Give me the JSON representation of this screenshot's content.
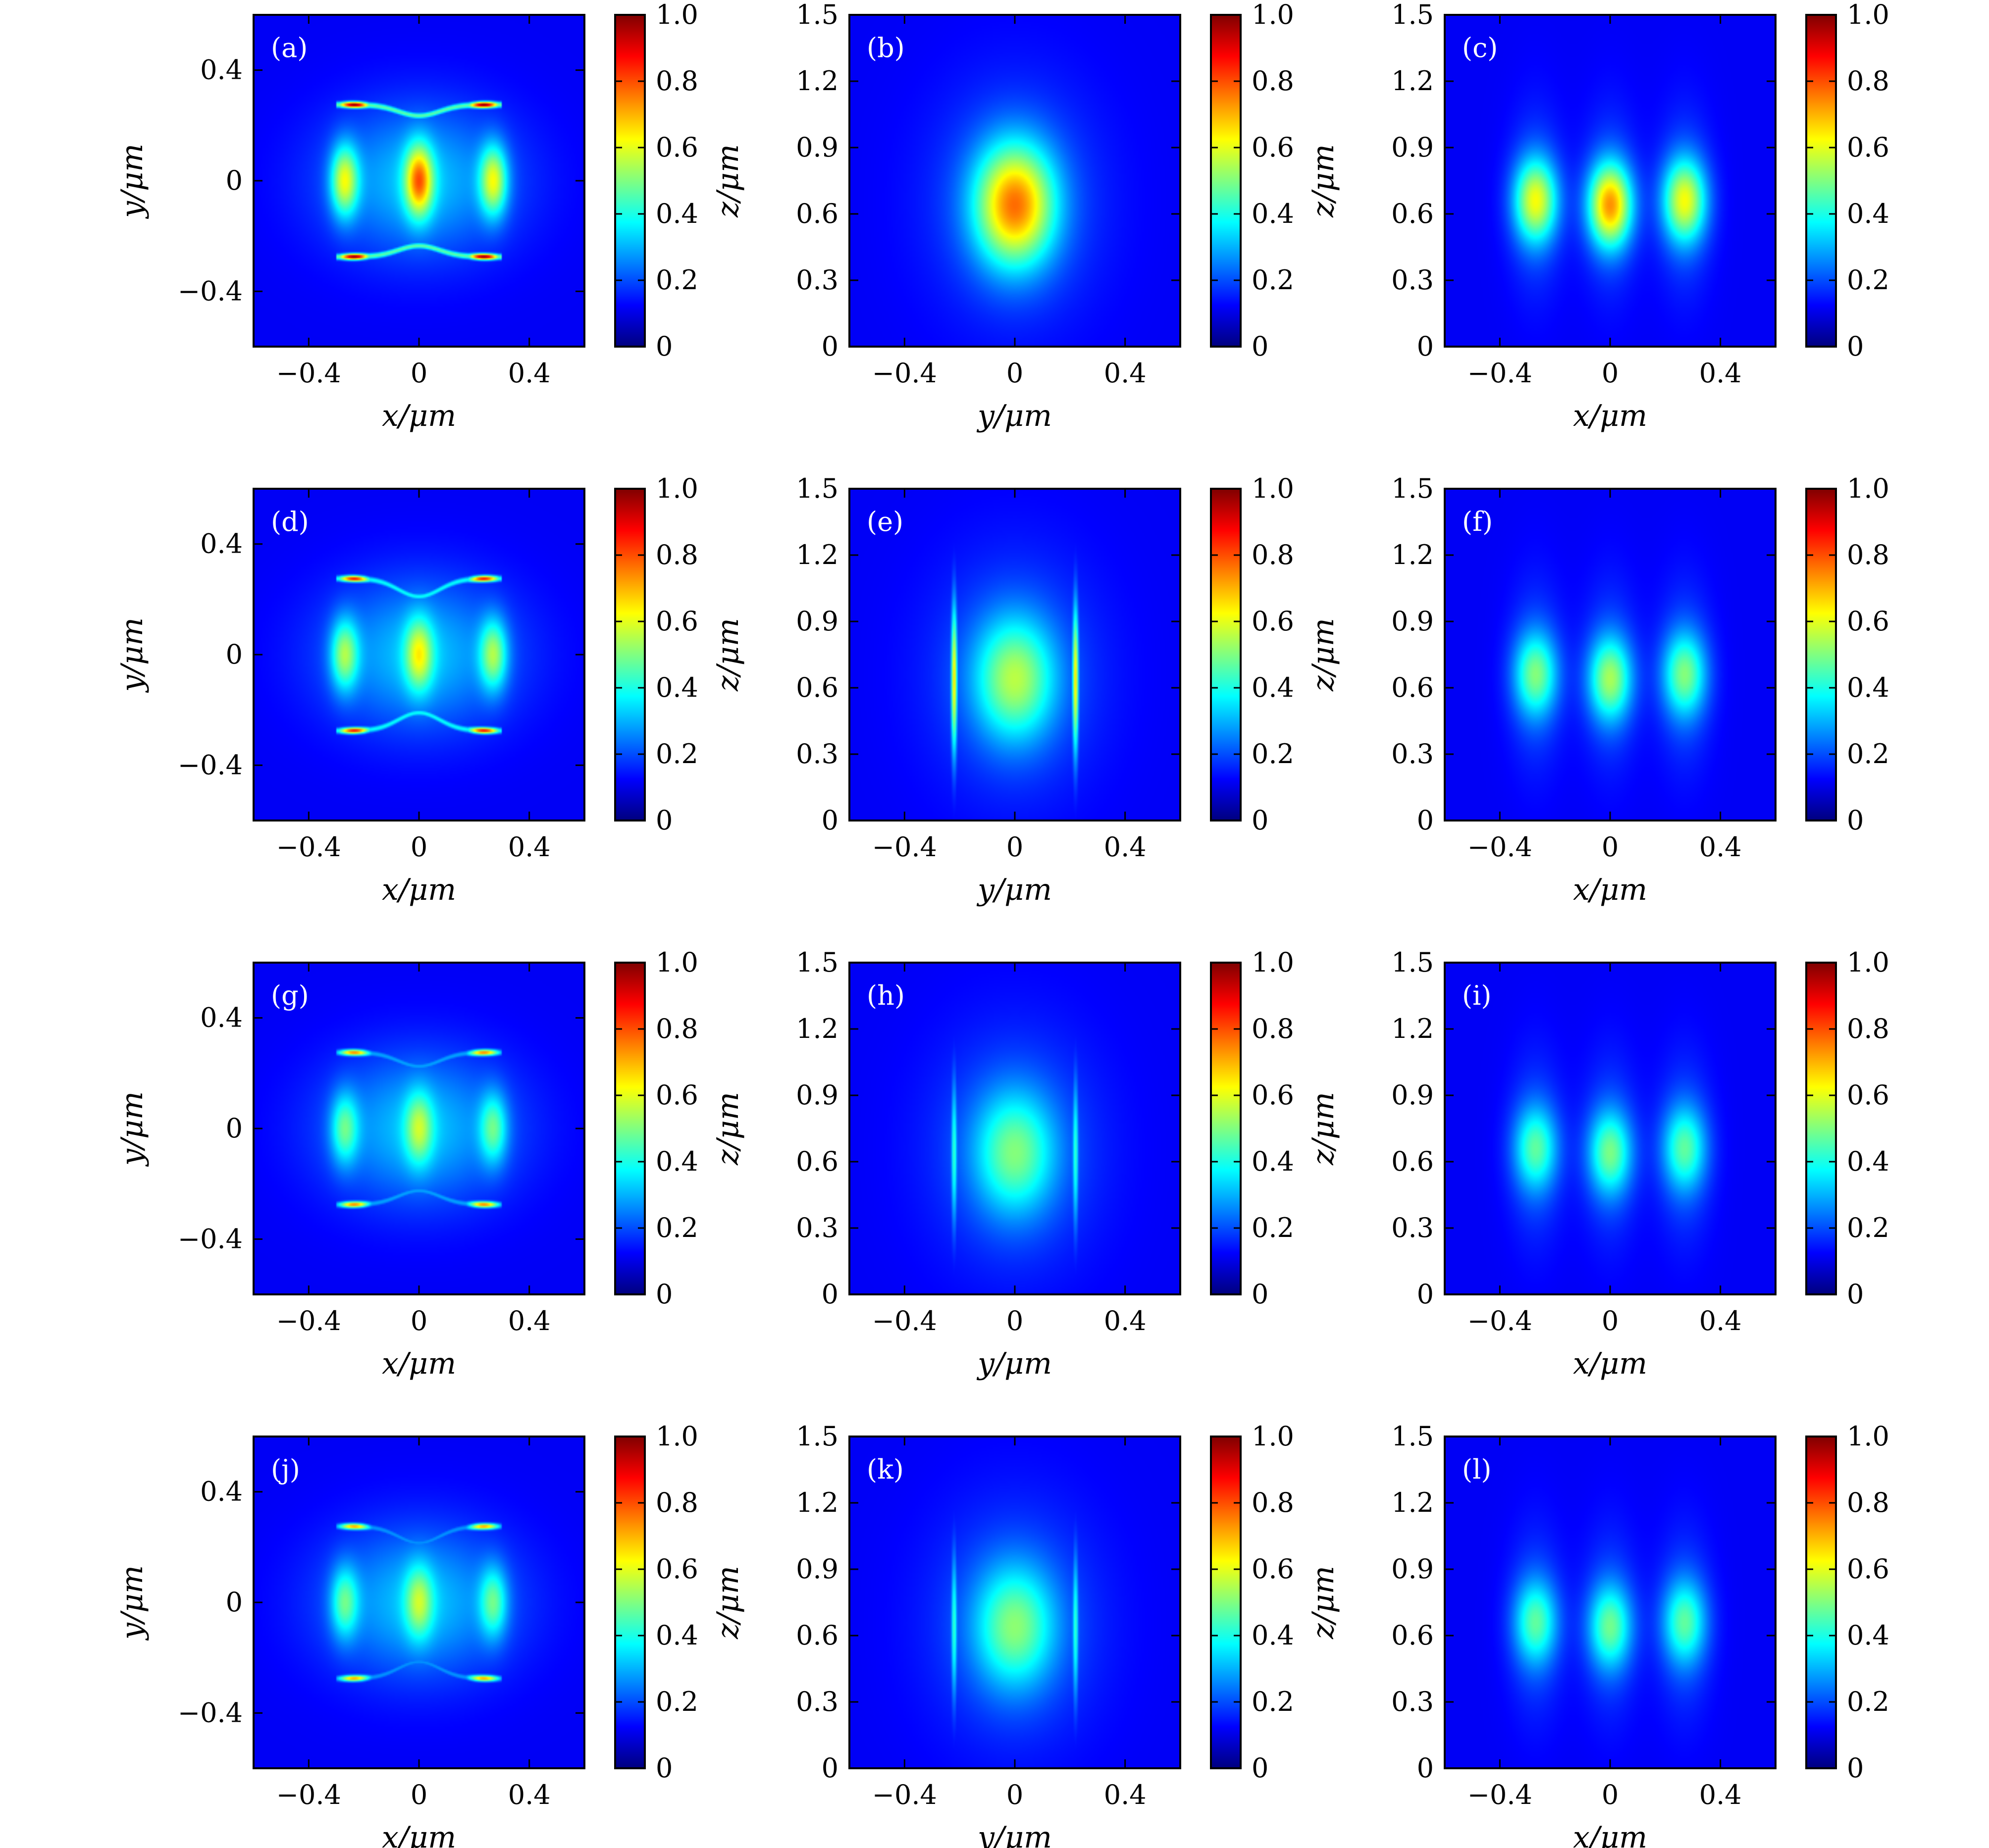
{
  "colormap": {
    "name": "jet",
    "stops": [
      "#00007f",
      "#0000ff",
      "#0080ff",
      "#00ffff",
      "#80ff80",
      "#ffff00",
      "#ff8000",
      "#ff0000",
      "#7f0000"
    ]
  },
  "colors": {
    "frame": "#000000",
    "background": "#ffffff"
  },
  "colorbar": {
    "ticks": [
      "0",
      "0.2",
      "0.4",
      "0.6",
      "0.8",
      "1.0"
    ],
    "range": [
      0,
      1
    ]
  },
  "chart_data": [
    {
      "type": "heatmap",
      "label": "(a)",
      "view": "xy",
      "xlabel": "x/μm",
      "ylabel": "y/μm",
      "xlim": [
        -0.6,
        0.6
      ],
      "ylim": [
        -0.6,
        0.6
      ],
      "xticks": [
        "−0.4",
        "0",
        "0.4"
      ],
      "yticks": [
        "−0.4",
        "0",
        "0.4"
      ],
      "bar_gap": 0.04,
      "bar_amp": 0.72,
      "edge_amp": 1.0,
      "lobe_amps": [
        0.45,
        0.55,
        0.45
      ]
    },
    {
      "type": "heatmap",
      "label": "(b)",
      "view": "yz",
      "xlabel": "y/μm",
      "ylabel": "z/μm",
      "xlim": [
        -0.6,
        0.6
      ],
      "ylim": [
        0,
        1.5
      ],
      "xticks": [
        "−0.4",
        "0",
        "0.4"
      ],
      "yticks": [
        "0",
        "0.3",
        "0.6",
        "0.9",
        "1.2",
        "1.5"
      ],
      "peak": 0.62,
      "line_amp": 0.1
    },
    {
      "type": "heatmap",
      "label": "(c)",
      "view": "xz",
      "xlabel": "x/μm",
      "ylabel": "z/μm",
      "xlim": [
        -0.6,
        0.6
      ],
      "ylim": [
        0,
        1.5
      ],
      "xticks": [
        "−0.4",
        "0",
        "0.4"
      ],
      "yticks": [
        "0",
        "0.3",
        "0.6",
        "0.9",
        "1.2",
        "1.5"
      ],
      "lobe_amps": [
        0.47,
        0.6,
        0.47
      ]
    },
    {
      "type": "heatmap",
      "label": "(d)",
      "view": "xy",
      "xlabel": "x/μm",
      "ylabel": "y/μm",
      "xlim": [
        -0.6,
        0.6
      ],
      "ylim": [
        -0.6,
        0.6
      ],
      "xticks": [
        "−0.4",
        "0",
        "0.4"
      ],
      "yticks": [
        "−0.4",
        "0",
        "0.4"
      ],
      "bar_gap": 0.065,
      "bar_amp": 0.55,
      "edge_amp": 0.85,
      "lobe_amps": [
        0.37,
        0.37,
        0.37
      ]
    },
    {
      "type": "heatmap",
      "label": "(e)",
      "view": "yz",
      "xlabel": "y/μm",
      "ylabel": "z/μm",
      "xlim": [
        -0.6,
        0.6
      ],
      "ylim": [
        0,
        1.5
      ],
      "xticks": [
        "−0.4",
        "0",
        "0.4"
      ],
      "yticks": [
        "0",
        "0.3",
        "0.6",
        "0.9",
        "1.2",
        "1.5"
      ],
      "peak": 0.38,
      "line_amp": 0.6
    },
    {
      "type": "heatmap",
      "label": "(f)",
      "view": "xz",
      "xlabel": "x/μm",
      "ylabel": "z/μm",
      "xlim": [
        -0.6,
        0.6
      ],
      "ylim": [
        0,
        1.5
      ],
      "xticks": [
        "−0.4",
        "0",
        "0.4"
      ],
      "yticks": [
        "0",
        "0.3",
        "0.6",
        "0.9",
        "1.2",
        "1.5"
      ],
      "lobe_amps": [
        0.34,
        0.38,
        0.34
      ]
    },
    {
      "type": "heatmap",
      "label": "(g)",
      "view": "xy",
      "xlabel": "x/μm",
      "ylabel": "y/μm",
      "xlim": [
        -0.6,
        0.6
      ],
      "ylim": [
        -0.6,
        0.6
      ],
      "xticks": [
        "−0.4",
        "0",
        "0.4"
      ],
      "yticks": [
        "−0.4",
        "0",
        "0.4"
      ],
      "bar_gap": 0.05,
      "bar_amp": 0.35,
      "edge_amp": 0.72,
      "lobe_amps": [
        0.3,
        0.3,
        0.3
      ]
    },
    {
      "type": "heatmap",
      "label": "(h)",
      "view": "yz",
      "xlabel": "y/μm",
      "ylabel": "z/μm",
      "xlim": [
        -0.6,
        0.6
      ],
      "ylim": [
        0,
        1.5
      ],
      "xticks": [
        "−0.4",
        "0",
        "0.4"
      ],
      "yticks": [
        "0",
        "0.3",
        "0.6",
        "0.9",
        "1.2",
        "1.5"
      ],
      "peak": 0.32,
      "line_amp": 0.35
    },
    {
      "type": "heatmap",
      "label": "(i)",
      "view": "xz",
      "xlabel": "x/μm",
      "ylabel": "z/μm",
      "xlim": [
        -0.6,
        0.6
      ],
      "ylim": [
        0,
        1.5
      ],
      "xticks": [
        "−0.4",
        "0",
        "0.4"
      ],
      "yticks": [
        "0",
        "0.3",
        "0.6",
        "0.9",
        "1.2",
        "1.5"
      ],
      "lobe_amps": [
        0.3,
        0.33,
        0.3
      ]
    },
    {
      "type": "heatmap",
      "label": "(j)",
      "view": "xy",
      "xlabel": "x/μm",
      "ylabel": "y/μm",
      "xlim": [
        -0.6,
        0.6
      ],
      "ylim": [
        -0.6,
        0.6
      ],
      "xticks": [
        "−0.4",
        "0",
        "0.4"
      ],
      "yticks": [
        "−0.4",
        "0",
        "0.4"
      ],
      "bar_gap": 0.06,
      "bar_amp": 0.32,
      "edge_amp": 0.68,
      "lobe_amps": [
        0.3,
        0.3,
        0.3
      ]
    },
    {
      "type": "heatmap",
      "label": "(k)",
      "view": "yz",
      "xlabel": "y/μm",
      "ylabel": "z/μm",
      "xlim": [
        -0.6,
        0.6
      ],
      "ylim": [
        0,
        1.5
      ],
      "xticks": [
        "−0.4",
        "0",
        "0.4"
      ],
      "yticks": [
        "0",
        "0.3",
        "0.6",
        "0.9",
        "1.2",
        "1.5"
      ],
      "peak": 0.33,
      "line_amp": 0.35
    },
    {
      "type": "heatmap",
      "label": "(l)",
      "view": "xz",
      "xlabel": "x/μm",
      "ylabel": "z/μm",
      "xlim": [
        -0.6,
        0.6
      ],
      "ylim": [
        0,
        1.5
      ],
      "xticks": [
        "−0.4",
        "0",
        "0.4"
      ],
      "yticks": [
        "0",
        "0.3",
        "0.6",
        "0.9",
        "1.2",
        "1.5"
      ],
      "lobe_amps": [
        0.3,
        0.32,
        0.3
      ]
    }
  ]
}
